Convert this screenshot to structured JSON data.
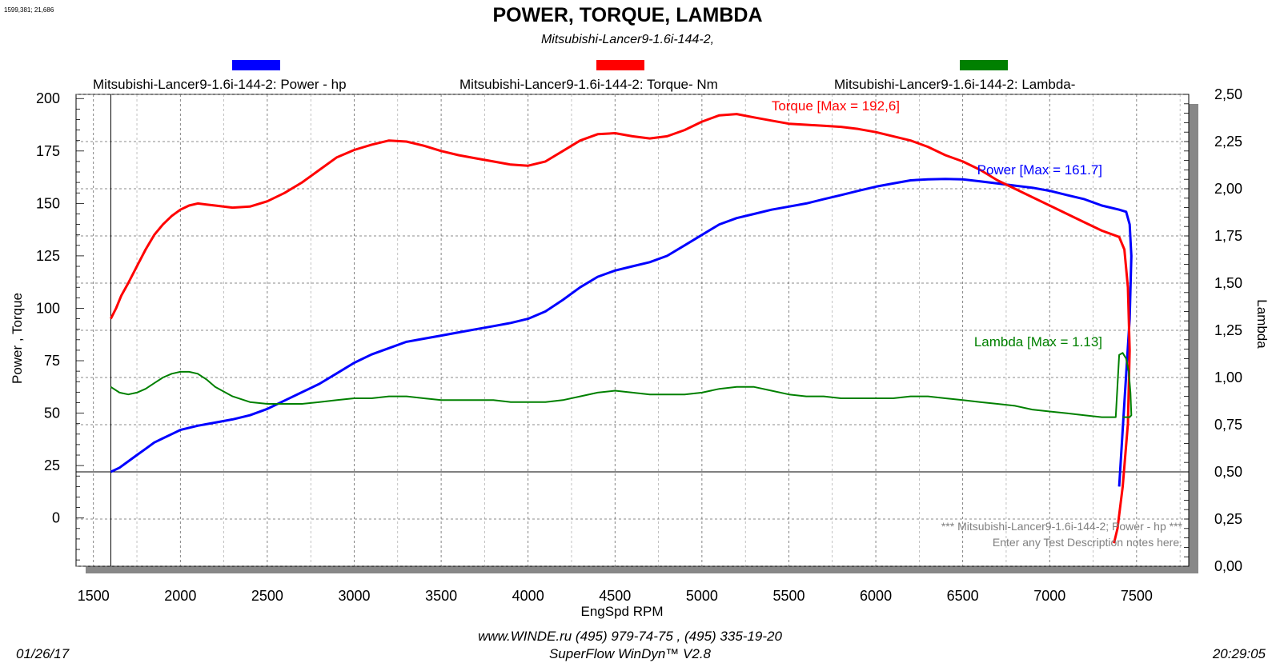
{
  "cursor_readout": "1599,381; 21,686",
  "footer": {
    "date": "01/26/17",
    "time": "20:29:05",
    "website_phone": "www.WINDE.ru  (495) 979-74-75 , (495) 335-19-20",
    "software": "SuperFlow WinDyn™ V2.8"
  },
  "chart_data": {
    "type": "line",
    "title": "POWER, TORQUE, LAMBDA",
    "subtitle": "Mitsubishi-Lancer9-1.6i-144-2,",
    "xlabel": "EngSpd  RPM",
    "ylabel_left": "Power , Torque",
    "ylabel_right": "Lambda",
    "xlim": [
      1400,
      7800
    ],
    "ylim_left": [
      -23,
      202
    ],
    "ylim_right": [
      0,
      2.5
    ],
    "x_ticks": [
      1500,
      2000,
      2500,
      3000,
      3500,
      4000,
      4500,
      5000,
      5500,
      6000,
      6500,
      7000,
      7500
    ],
    "y_left_ticks": [
      0,
      25,
      50,
      75,
      100,
      125,
      150,
      175,
      200
    ],
    "y_right_ticks": [
      "0,00",
      "0,25",
      "0,50",
      "0,75",
      "1,00",
      "1,25",
      "1,50",
      "1,75",
      "2,00",
      "2,25",
      "2,50"
    ],
    "grid": true,
    "legend_position": "top",
    "reference_lines": [
      {
        "axis": "x",
        "value": 1600
      },
      {
        "axis": "y",
        "value": 22
      }
    ],
    "series": [
      {
        "name": "Mitsubishi-Lancer9-1.6i-144-2: Power -  hp",
        "color": "#0000ff",
        "annotation": "Power  [Max = 161.7]",
        "x": [
          1600,
          1650,
          1700,
          1750,
          1800,
          1850,
          1900,
          1950,
          2000,
          2100,
          2200,
          2300,
          2400,
          2500,
          2600,
          2700,
          2800,
          2900,
          3000,
          3100,
          3200,
          3300,
          3400,
          3500,
          3600,
          3700,
          3800,
          3900,
          4000,
          4100,
          4200,
          4300,
          4400,
          4500,
          4600,
          4700,
          4800,
          4900,
          5000,
          5100,
          5200,
          5300,
          5400,
          5500,
          5600,
          5700,
          5800,
          5900,
          6000,
          6100,
          6200,
          6300,
          6400,
          6500,
          6600,
          6700,
          6800,
          6900,
          7000,
          7100,
          7200,
          7300,
          7400,
          7440,
          7460,
          7470,
          7460,
          7430,
          7400
        ],
        "values": [
          22,
          24,
          27,
          30,
          33,
          36,
          38,
          40,
          42,
          44,
          45.5,
          47,
          49,
          52,
          56,
          60,
          64,
          69,
          74,
          78,
          81,
          84,
          85.5,
          87,
          88.5,
          90,
          91.5,
          93,
          95,
          98.5,
          104,
          110,
          115,
          118,
          120,
          122,
          125,
          130,
          135,
          140,
          143,
          145,
          147,
          148.5,
          150,
          152,
          154,
          156,
          158,
          159.5,
          161,
          161.5,
          161.7,
          161.5,
          160.5,
          159.5,
          158.5,
          157.5,
          156,
          154,
          152,
          149,
          147,
          146,
          140,
          125,
          95,
          55,
          15
        ]
      },
      {
        "name": "Mitsubishi-Lancer9-1.6i-144-2: Torque-  Nm",
        "color": "#ff0000",
        "annotation": "Torque [Max = 192,6]",
        "x": [
          1600,
          1630,
          1660,
          1700,
          1750,
          1800,
          1850,
          1900,
          1950,
          2000,
          2050,
          2100,
          2150,
          2200,
          2300,
          2400,
          2500,
          2600,
          2700,
          2800,
          2900,
          3000,
          3100,
          3200,
          3300,
          3400,
          3500,
          3600,
          3700,
          3800,
          3900,
          4000,
          4100,
          4200,
          4300,
          4400,
          4500,
          4600,
          4700,
          4800,
          4900,
          5000,
          5100,
          5200,
          5300,
          5400,
          5500,
          5600,
          5700,
          5800,
          5900,
          6000,
          6100,
          6200,
          6300,
          6400,
          6500,
          6600,
          6700,
          6800,
          6900,
          7000,
          7100,
          7200,
          7300,
          7400,
          7430,
          7450,
          7460,
          7450,
          7420,
          7390,
          7370
        ],
        "values": [
          95,
          100,
          106,
          112,
          120,
          128,
          135,
          140,
          144,
          147,
          149,
          150,
          149.5,
          149,
          148,
          148.5,
          151,
          155,
          160,
          166,
          172,
          175.5,
          178,
          180,
          179.5,
          177.5,
          175,
          173,
          171.5,
          170,
          168.5,
          168,
          170,
          175,
          180,
          183,
          183.5,
          182,
          181,
          182,
          185,
          189,
          192,
          192.6,
          191,
          189.5,
          188,
          187.5,
          187,
          186.5,
          185.5,
          184,
          182,
          180,
          177,
          173,
          170,
          166,
          161,
          157,
          153,
          149,
          145,
          141,
          137,
          134,
          128,
          110,
          80,
          45,
          15,
          -5,
          -12
        ]
      },
      {
        "name": "Mitsubishi-Lancer9-1.6i-144-2: Lambda-",
        "color": "#008000",
        "annotation": "Lambda [Max = 1.13]",
        "x": [
          1600,
          1650,
          1700,
          1750,
          1800,
          1850,
          1900,
          1950,
          2000,
          2050,
          2100,
          2150,
          2200,
          2300,
          2400,
          2500,
          2600,
          2700,
          2800,
          2900,
          3000,
          3100,
          3200,
          3300,
          3400,
          3500,
          3600,
          3700,
          3800,
          3900,
          4000,
          4100,
          4200,
          4300,
          4400,
          4500,
          4600,
          4700,
          4800,
          4900,
          5000,
          5100,
          5200,
          5300,
          5400,
          5500,
          5600,
          5700,
          5800,
          5900,
          6000,
          6100,
          6200,
          6300,
          6400,
          6500,
          6600,
          6700,
          6800,
          6900,
          7000,
          7100,
          7200,
          7300,
          7350,
          7380,
          7400,
          7420,
          7440,
          7455,
          7465,
          7470,
          7460,
          7440,
          7420
        ],
        "values": [
          0.95,
          0.92,
          0.91,
          0.92,
          0.94,
          0.97,
          1.0,
          1.02,
          1.03,
          1.03,
          1.02,
          0.99,
          0.95,
          0.9,
          0.87,
          0.86,
          0.86,
          0.86,
          0.87,
          0.88,
          0.89,
          0.89,
          0.9,
          0.9,
          0.89,
          0.88,
          0.88,
          0.88,
          0.88,
          0.87,
          0.87,
          0.87,
          0.88,
          0.9,
          0.92,
          0.93,
          0.92,
          0.91,
          0.91,
          0.91,
          0.92,
          0.94,
          0.95,
          0.95,
          0.93,
          0.91,
          0.9,
          0.9,
          0.89,
          0.89,
          0.89,
          0.89,
          0.9,
          0.9,
          0.89,
          0.88,
          0.87,
          0.86,
          0.85,
          0.83,
          0.82,
          0.81,
          0.8,
          0.79,
          0.79,
          0.79,
          1.12,
          1.13,
          1.1,
          1.03,
          0.92,
          0.8,
          0.79,
          0.79,
          0.79
        ]
      }
    ],
    "notes": [
      "*** Mitsubishi-Lancer9-1.6i-144-2; Power -  hp   ***",
      "Enter any Test Description notes here."
    ]
  }
}
